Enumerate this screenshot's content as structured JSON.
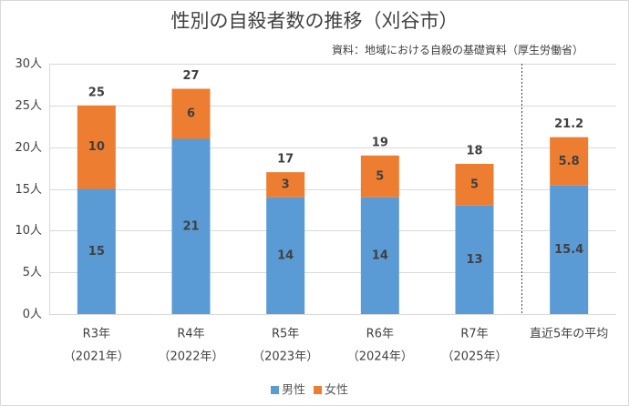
{
  "chart_data": {
    "type": "bar",
    "stacked": true,
    "title": "性別の自殺者数の推移（刈谷市）",
    "source": "資料：地域における自殺の基礎資料（厚生労働省）",
    "categories": [
      {
        "label": "R3年",
        "sublabel": "（2021年）"
      },
      {
        "label": "R4年",
        "sublabel": "（2022年）"
      },
      {
        "label": "R5年",
        "sublabel": "（2023年）"
      },
      {
        "label": "R6年",
        "sublabel": "（2024年）"
      },
      {
        "label": "R7年",
        "sublabel": "（2025年）"
      },
      {
        "label": "直近5年の平均",
        "separated_by_dashed_line": true
      }
    ],
    "series": [
      {
        "name": "男性",
        "color": "#5B9BD5",
        "values": [
          15,
          21,
          14,
          14,
          13,
          15.4
        ]
      },
      {
        "name": "女性",
        "color": "#ED7D31",
        "values": [
          10,
          6,
          3,
          5,
          5,
          5.8
        ]
      }
    ],
    "totals": [
      25,
      27,
      17,
      19,
      18,
      21.2
    ],
    "ylim": [
      0,
      30
    ],
    "yticks": [
      {
        "value": 0,
        "label": "0人"
      },
      {
        "value": 5,
        "label": "5人"
      },
      {
        "value": 10,
        "label": "10人"
      },
      {
        "value": 15,
        "label": "15人"
      },
      {
        "value": 20,
        "label": "20人"
      },
      {
        "value": 25,
        "label": "25人"
      },
      {
        "value": 30,
        "label": "30人"
      }
    ],
    "grid": true,
    "legend_position": "bottom"
  }
}
